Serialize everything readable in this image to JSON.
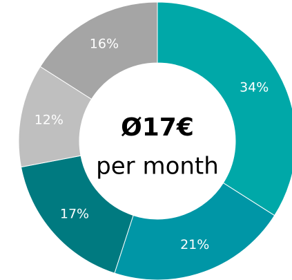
{
  "chart_data": {
    "type": "donut",
    "categories": [
      null,
      null,
      null,
      null,
      null
    ],
    "values": [
      34,
      21,
      17,
      12,
      16
    ],
    "value_labels": [
      "34%",
      "21%",
      "17%",
      "12%",
      "16%"
    ],
    "colors": [
      "#00a8a8",
      "#0096a6",
      "#007a80",
      "#bfbfbf",
      "#a5a5a5"
    ],
    "center_text": [
      "Ø17€",
      "per month"
    ]
  }
}
